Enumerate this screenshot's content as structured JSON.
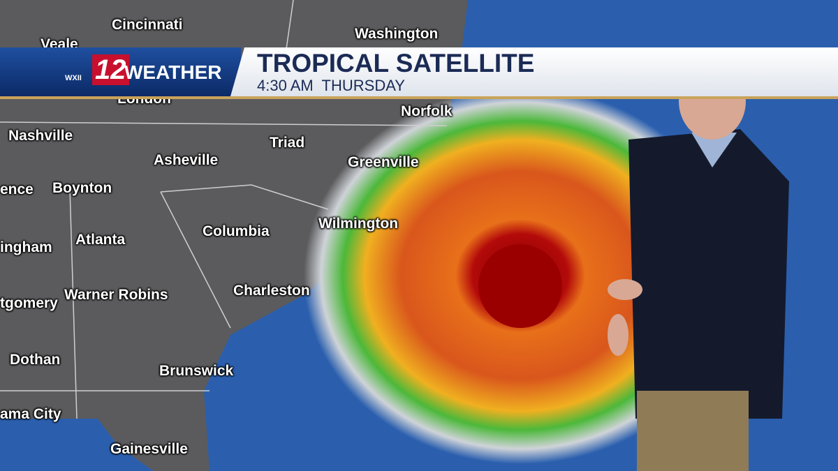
{
  "banner": {
    "station": "WXII",
    "channel": "12",
    "brand": "WEATHER",
    "title": "TROPICAL SATELLITE",
    "subtitle": "4:30 AM  THURSDAY"
  },
  "map_labels": [
    "Cincinnati",
    "Veale",
    "Washington",
    "London",
    "Norfolk",
    "Nashville",
    "Triad",
    "Asheville",
    "Greenville",
    "ence",
    "Boynton",
    "Wilmington",
    "Columbia",
    "ingham",
    "Atlanta",
    "Warner Robins",
    "Charleston",
    "tgomery",
    "Dothan",
    "Brunswick",
    "ama City",
    "Gainesville"
  ]
}
